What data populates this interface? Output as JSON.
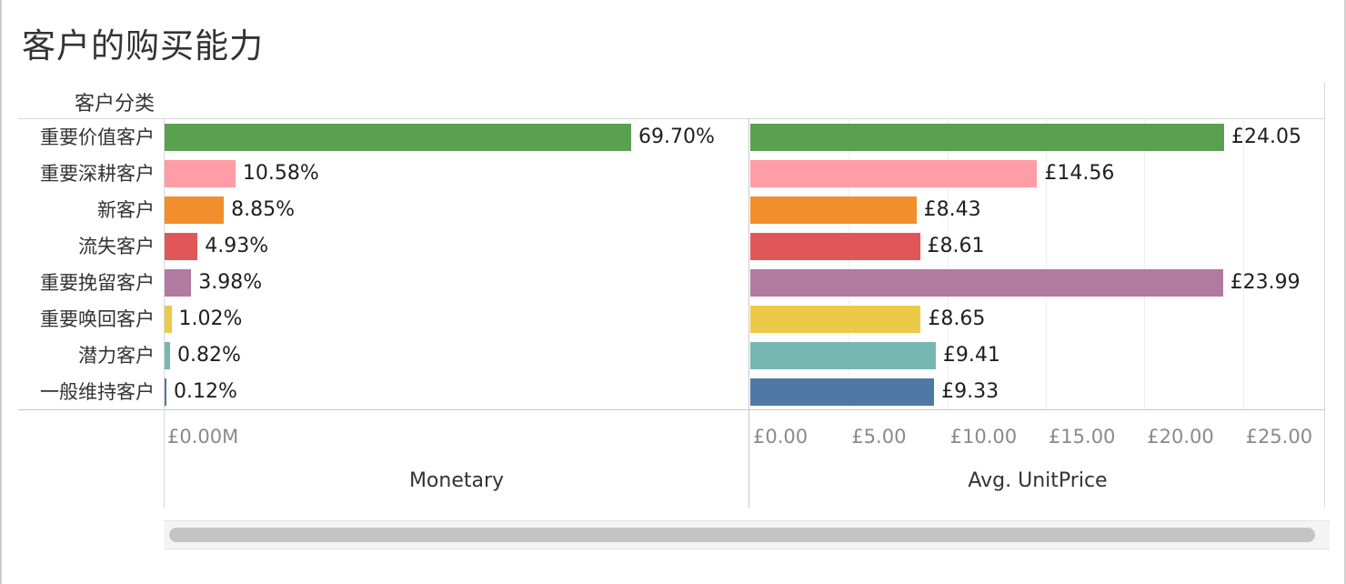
{
  "title": "客户的购买能力",
  "chart_data": {
    "type": "bar",
    "orientation": "horizontal",
    "row_header": "客户分类",
    "categories": [
      "重要价值客户",
      "重要深耕客户",
      "新客户",
      "流失客户",
      "重要挽留客户",
      "重要唤回客户",
      "潜力客户",
      "一般维持客户"
    ],
    "colors": [
      "#59a14f",
      "#ff9da7",
      "#f28e2b",
      "#e15759",
      "#b07aa1",
      "#edc948",
      "#76b7b2",
      "#4e79a7"
    ],
    "panels": [
      {
        "name": "Monetary",
        "axis_title": "Monetary",
        "values": [
          69.7,
          10.58,
          8.85,
          4.93,
          3.98,
          1.02,
          0.82,
          0.12
        ],
        "value_labels": [
          "69.70%",
          "10.58%",
          "8.85%",
          "4.93%",
          "3.98%",
          "1.02%",
          "0.82%",
          "0.12%"
        ],
        "xlim": [
          0,
          69.7
        ],
        "ticks": [
          {
            "value": 0,
            "label": "£0.00M"
          }
        ]
      },
      {
        "name": "Avg. UnitPrice",
        "axis_title": "Avg. UnitPrice",
        "values": [
          24.05,
          14.56,
          8.43,
          8.61,
          23.99,
          8.65,
          9.41,
          9.33
        ],
        "value_labels": [
          "£24.05",
          "£14.56",
          "£8.43",
          "£8.61",
          "£23.99",
          "£8.65",
          "£9.41",
          "£9.33"
        ],
        "xlim": [
          0,
          24.05
        ],
        "ticks": [
          {
            "value": 0,
            "label": "£0.00"
          },
          {
            "value": 5,
            "label": "£5.00"
          },
          {
            "value": 10,
            "label": "£10.00"
          },
          {
            "value": 15,
            "label": "£15.00"
          },
          {
            "value": 20,
            "label": "£20.00"
          },
          {
            "value": 25,
            "label": "£25.00"
          }
        ]
      }
    ],
    "grid": true,
    "legend": "none"
  }
}
